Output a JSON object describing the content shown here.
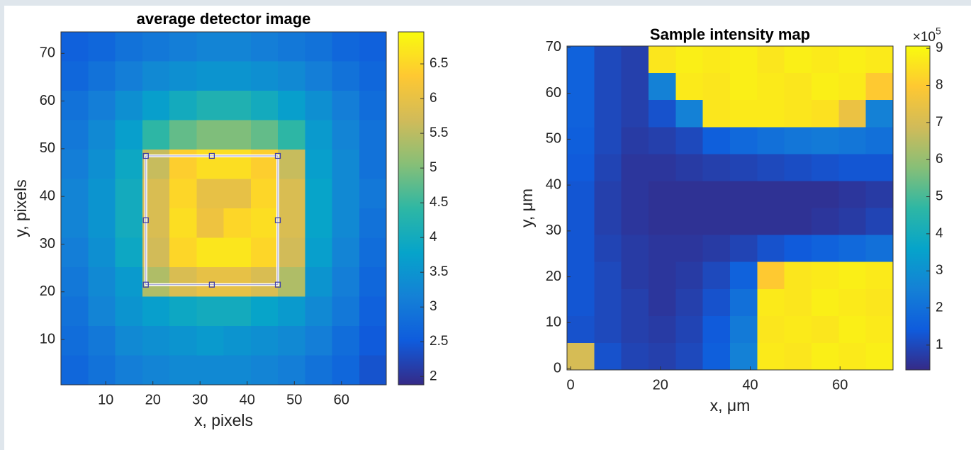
{
  "chart_data": [
    {
      "type": "heatmap",
      "title": "average detector image",
      "x_label": "x, pixels",
      "y_label": "y, pixels",
      "xlim": [
        0.5,
        69.5
      ],
      "ylim": [
        0.5,
        74.5
      ],
      "xticks": [
        10,
        20,
        30,
        40,
        50,
        60
      ],
      "yticks": [
        10,
        20,
        30,
        40,
        50,
        60,
        70
      ],
      "clim": [
        1.88,
        6.96
      ],
      "colorbar_ticks": [
        2,
        2.5,
        3,
        3.5,
        4,
        4.5,
        5,
        5.5,
        6,
        6.5
      ],
      "colormap": [
        "#352a87",
        "#0f5cdd",
        "#1481d6",
        "#06a4ca",
        "#2eb7a4",
        "#87bf77",
        "#d1bb59",
        "#fec832",
        "#f9fb0e"
      ],
      "roi": {
        "x": [
          18.5,
          46.5
        ],
        "y": [
          21.5,
          48.5
        ]
      },
      "z": [
        [
          2.6,
          2.7,
          2.9,
          3.0,
          3.1,
          3.2,
          3.2,
          3.1,
          3.0,
          2.9,
          2.7,
          2.6
        ],
        [
          2.7,
          2.9,
          3.1,
          3.3,
          3.4,
          3.5,
          3.5,
          3.4,
          3.3,
          3.1,
          2.9,
          2.7
        ],
        [
          2.9,
          3.1,
          3.4,
          3.7,
          4.0,
          4.2,
          4.2,
          4.0,
          3.7,
          3.4,
          3.1,
          2.8
        ],
        [
          3.0,
          3.3,
          3.7,
          4.4,
          4.8,
          5.0,
          5.0,
          4.8,
          4.4,
          3.6,
          3.2,
          2.9
        ],
        [
          3.1,
          3.4,
          3.9,
          5.6,
          6.4,
          6.6,
          6.6,
          6.4,
          5.6,
          3.7,
          3.3,
          2.9
        ],
        [
          3.2,
          3.5,
          4.0,
          5.8,
          6.5,
          6.0,
          6.0,
          6.5,
          5.8,
          3.8,
          3.3,
          3.0
        ],
        [
          3.2,
          3.5,
          4.0,
          5.8,
          6.6,
          6.1,
          6.5,
          6.6,
          5.8,
          3.8,
          3.3,
          2.9
        ],
        [
          3.1,
          3.4,
          3.9,
          5.7,
          6.5,
          6.7,
          6.7,
          6.5,
          5.7,
          3.7,
          3.2,
          2.8
        ],
        [
          3.0,
          3.3,
          3.6,
          5.4,
          5.8,
          6.0,
          6.0,
          5.8,
          5.4,
          3.5,
          3.1,
          2.7
        ],
        [
          2.9,
          3.2,
          3.5,
          3.7,
          3.9,
          4.0,
          4.0,
          3.8,
          3.6,
          3.3,
          3.0,
          2.6
        ],
        [
          2.8,
          3.0,
          3.3,
          3.4,
          3.5,
          3.6,
          3.5,
          3.4,
          3.3,
          3.1,
          2.8,
          2.5
        ],
        [
          2.7,
          2.9,
          3.1,
          3.2,
          3.3,
          3.3,
          3.3,
          3.2,
          3.1,
          2.9,
          2.7,
          2.4
        ]
      ]
    },
    {
      "type": "heatmap",
      "title": "Sample intensity map",
      "x_label": "x, μm",
      "y_label": "y, μm",
      "xlim": [
        -0.8,
        71.8
      ],
      "ylim": [
        -0.3,
        70.3
      ],
      "xticks": [
        0,
        20,
        40,
        60
      ],
      "yticks": [
        0,
        10,
        20,
        30,
        40,
        50,
        60,
        70
      ],
      "clim": [
        0.33,
        9.06
      ],
      "colorbar_ticks": [
        1,
        2,
        3,
        4,
        5,
        6,
        7,
        8,
        9
      ],
      "colorbar_exponent_label": "×10",
      "colorbar_exponent": 5,
      "colormap": [
        "#352a87",
        "#0f5cdd",
        "#1481d6",
        "#06a4ca",
        "#2eb7a4",
        "#87bf77",
        "#d1bb59",
        "#fec832",
        "#f9fb0e"
      ],
      "z": [
        [
          1.6,
          1.0,
          0.8,
          8.6,
          8.8,
          8.7,
          8.8,
          8.6,
          8.8,
          8.7,
          8.8,
          8.7
        ],
        [
          1.6,
          1.0,
          0.8,
          2.5,
          8.7,
          8.6,
          8.8,
          8.7,
          8.6,
          8.8,
          8.7,
          8.0
        ],
        [
          1.6,
          1.0,
          0.8,
          1.2,
          2.5,
          8.6,
          8.7,
          8.7,
          8.6,
          8.5,
          7.5,
          2.5
        ],
        [
          1.5,
          1.0,
          0.7,
          0.8,
          1.0,
          1.5,
          1.8,
          2.0,
          2.2,
          2.3,
          2.2,
          2.0
        ],
        [
          1.4,
          0.9,
          0.6,
          0.6,
          0.7,
          0.8,
          0.9,
          1.0,
          1.1,
          1.2,
          1.3,
          1.3
        ],
        [
          1.3,
          0.8,
          0.6,
          0.5,
          0.5,
          0.5,
          0.5,
          0.5,
          0.5,
          0.5,
          0.6,
          0.7
        ],
        [
          1.3,
          0.8,
          0.6,
          0.5,
          0.5,
          0.5,
          0.5,
          0.5,
          0.5,
          0.6,
          0.7,
          0.9
        ],
        [
          1.3,
          0.9,
          0.7,
          0.6,
          0.6,
          0.7,
          0.9,
          1.2,
          1.4,
          1.6,
          1.8,
          2.0
        ],
        [
          1.3,
          1.0,
          0.7,
          0.6,
          0.7,
          1.0,
          1.6,
          8.0,
          8.6,
          8.7,
          8.8,
          8.7
        ],
        [
          1.3,
          1.0,
          0.8,
          0.6,
          0.8,
          1.2,
          2.0,
          8.7,
          8.6,
          8.8,
          8.7,
          8.6
        ],
        [
          1.2,
          1.0,
          0.8,
          0.7,
          0.9,
          1.4,
          2.3,
          8.6,
          8.7,
          8.6,
          8.8,
          8.7
        ],
        [
          7.0,
          1.2,
          0.9,
          0.8,
          1.0,
          1.5,
          2.5,
          8.7,
          8.6,
          8.8,
          8.7,
          8.8
        ]
      ]
    }
  ]
}
